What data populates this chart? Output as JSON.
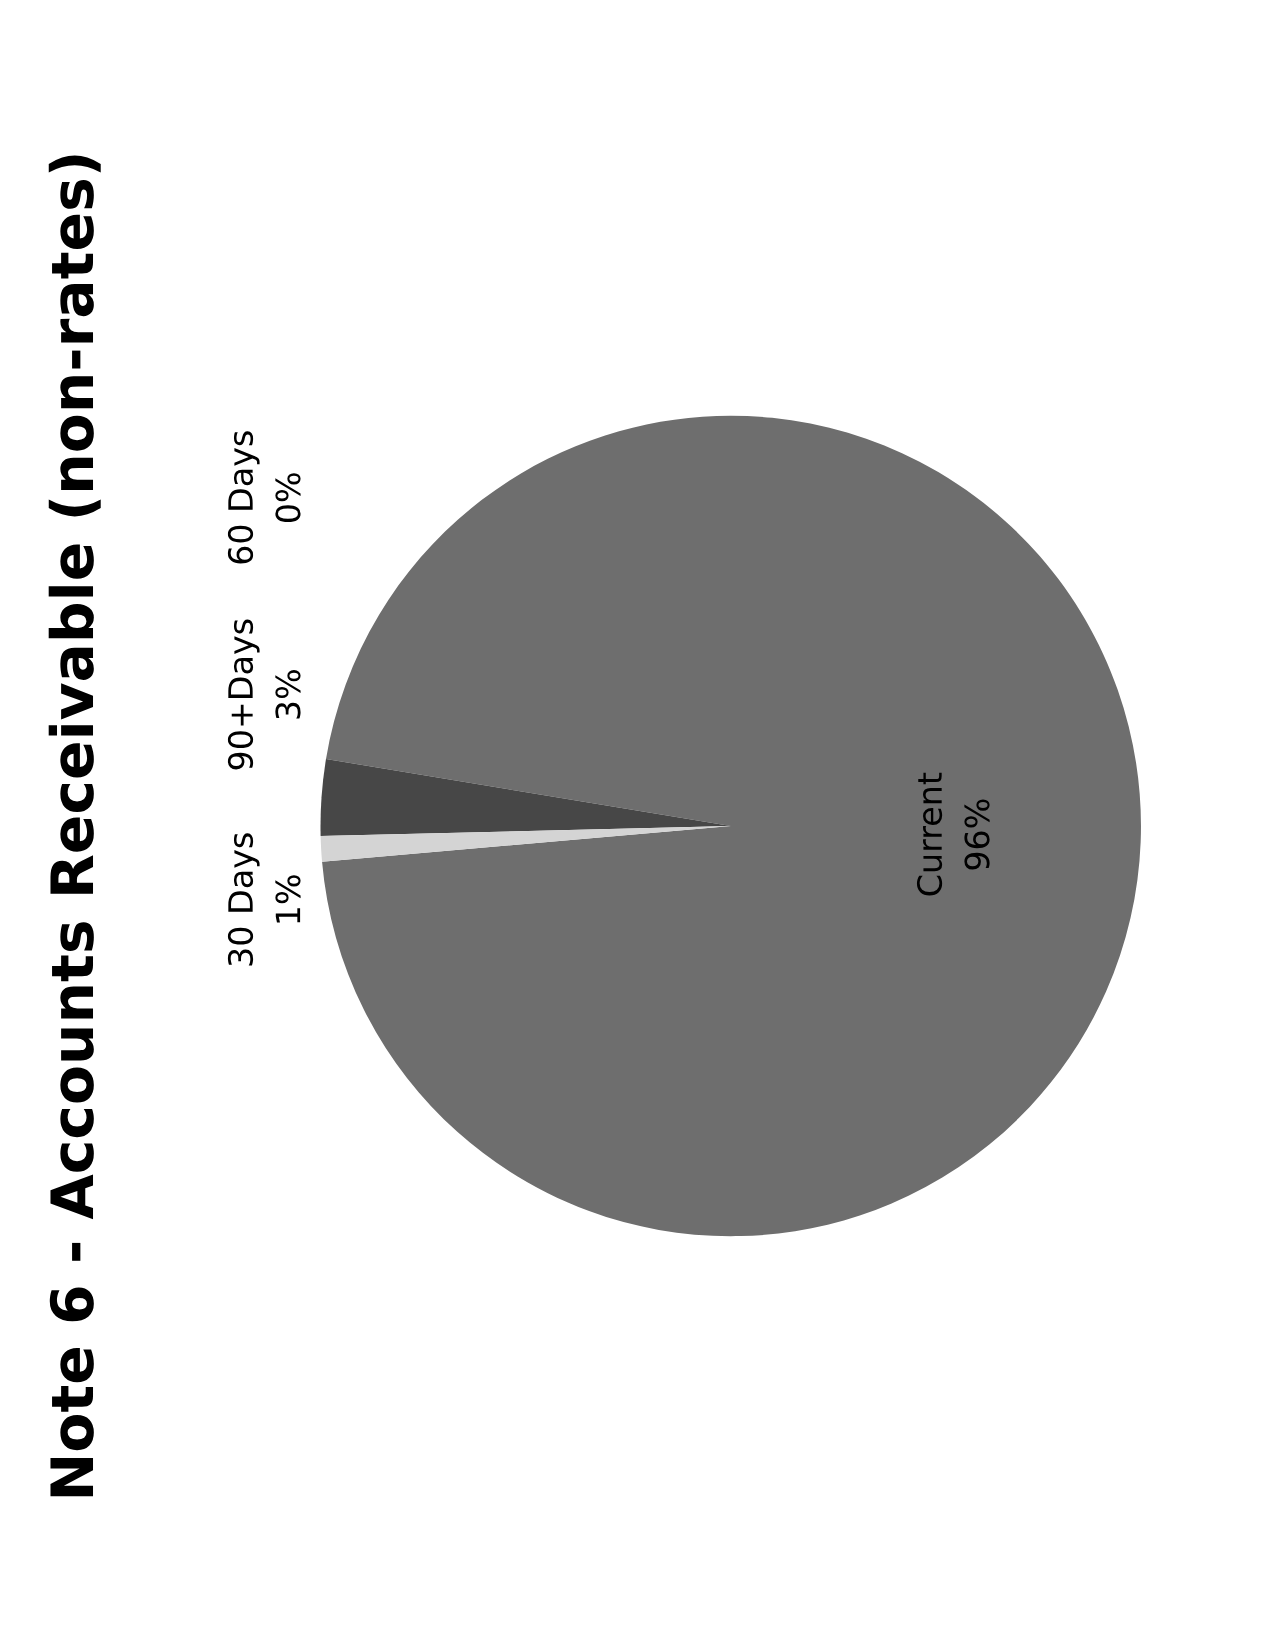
{
  "chart_data": {
    "type": "pie",
    "title": "Note 6 - Accounts Receivable (non-rates)",
    "categories": [
      "Current",
      "90+Days",
      "30 Days",
      "60 Days"
    ],
    "values": [
      96,
      3,
      1,
      0
    ],
    "value_labels": [
      "96%",
      "3%",
      "1%",
      "0%"
    ],
    "colors": [
      "#6e6e6e",
      "#474747",
      "#d4d4d4",
      "#9a9a9a"
    ]
  }
}
